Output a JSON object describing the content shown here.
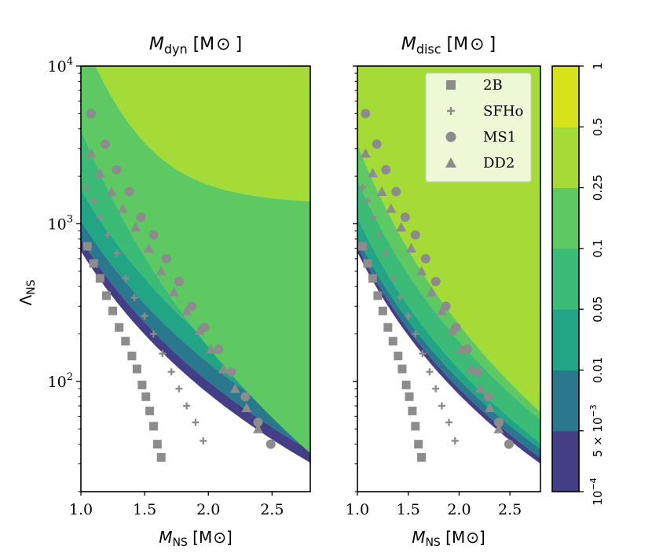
{
  "chart_data": [
    {
      "type": "contour",
      "title_main": "M",
      "title_sub": "dyn",
      "title_unit": " [M",
      "title_unit_sym": "⊙",
      "title_close": "]",
      "xlabel_main": "M",
      "xlabel_sub": "NS",
      "xlabel_unit": " [M",
      "xlabel_unit_sym": "⊙",
      "xlabel_close": "]",
      "ylabel_main": "Λ",
      "ylabel_sub": "NS",
      "xlim": [
        1.0,
        2.8
      ],
      "ylim": [
        20,
        10000
      ],
      "yscale": "log",
      "xticks": [
        "1.0",
        "1.5",
        "2.0",
        "2.5"
      ],
      "yticks": [
        {
          "base": "10",
          "exp": "2"
        },
        {
          "base": "10",
          "exp": "3"
        },
        {
          "base": "10",
          "exp": "4"
        }
      ],
      "curve_family": {
        "lambda_at_M1": [
          670,
          800,
          1050,
          1650,
          4000,
          15000
        ],
        "exponent": [
          3.0,
          3.0,
          3.0,
          3.2,
          4.6,
          5.0
        ],
        "floor": [
          0,
          0,
          0,
          0,
          0,
          1300
        ]
      },
      "series": [
        {
          "name": "2B",
          "marker": "square",
          "x": [
            1.05,
            1.1,
            1.15,
            1.2,
            1.25,
            1.3,
            1.35,
            1.4,
            1.44,
            1.48,
            1.51,
            1.54,
            1.57,
            1.6,
            1.63
          ],
          "y": [
            720,
            560,
            450,
            350,
            280,
            220,
            180,
            145,
            120,
            95,
            80,
            65,
            52,
            40,
            33
          ]
        },
        {
          "name": "SFHo",
          "marker": "plus",
          "x": [
            1.05,
            1.1,
            1.15,
            1.21,
            1.28,
            1.35,
            1.42,
            1.5,
            1.57,
            1.64,
            1.71,
            1.77,
            1.83,
            1.9,
            1.96
          ],
          "y": [
            1700,
            1400,
            1100,
            850,
            650,
            450,
            340,
            260,
            200,
            150,
            115,
            90,
            70,
            55,
            42
          ]
        },
        {
          "name": "MS1",
          "marker": "circle",
          "x": [
            1.08,
            1.19,
            1.28,
            1.38,
            1.47,
            1.57,
            1.67,
            1.77,
            1.87,
            1.97,
            2.08,
            2.18,
            2.29,
            2.39,
            2.49
          ],
          "y": [
            5000,
            3200,
            2200,
            1600,
            1100,
            850,
            600,
            430,
            300,
            220,
            160,
            115,
            80,
            55,
            40
          ]
        },
        {
          "name": "DD2",
          "marker": "triangle",
          "x": [
            1.08,
            1.15,
            1.24,
            1.33,
            1.43,
            1.53,
            1.63,
            1.73,
            1.83,
            1.93,
            2.02,
            2.12,
            2.21,
            2.3,
            2.39
          ],
          "y": [
            2800,
            2100,
            1600,
            1250,
            950,
            700,
            500,
            370,
            280,
            210,
            160,
            120,
            90,
            68,
            50
          ]
        }
      ]
    },
    {
      "type": "contour",
      "title_main": "M",
      "title_sub": "disc",
      "title_unit": " [M",
      "title_unit_sym": "⊙",
      "title_close": "]",
      "xlabel_main": "M",
      "xlabel_sub": "NS",
      "xlabel_unit": " [M",
      "xlabel_unit_sym": "⊙",
      "xlabel_close": "]",
      "xlim": [
        1.0,
        2.8
      ],
      "ylim": [
        20,
        10000
      ],
      "yscale": "log",
      "xticks": [
        "1.0",
        "1.5",
        "2.0",
        "2.5"
      ],
      "curve_family": {
        "lambda_at_M1": [
          660,
          720,
          820,
          1100,
          1900,
          3200
        ],
        "exponent": [
          3.0,
          3.0,
          3.0,
          3.2,
          3.4,
          3.8
        ],
        "floor": [
          0,
          0,
          0,
          0,
          0,
          0
        ]
      },
      "series": [
        {
          "name": "2B",
          "marker": "square",
          "x": [
            1.05,
            1.1,
            1.15,
            1.2,
            1.25,
            1.3,
            1.35,
            1.4,
            1.44,
            1.48,
            1.51,
            1.54,
            1.57,
            1.6,
            1.63
          ],
          "y": [
            720,
            560,
            450,
            350,
            280,
            220,
            180,
            145,
            120,
            95,
            80,
            65,
            52,
            40,
            33
          ]
        },
        {
          "name": "SFHo",
          "marker": "plus",
          "x": [
            1.05,
            1.1,
            1.15,
            1.21,
            1.28,
            1.35,
            1.42,
            1.5,
            1.57,
            1.64,
            1.71,
            1.77,
            1.83,
            1.9,
            1.96
          ],
          "y": [
            1700,
            1400,
            1100,
            850,
            650,
            450,
            340,
            260,
            200,
            150,
            115,
            90,
            70,
            55,
            42
          ]
        },
        {
          "name": "MS1",
          "marker": "circle",
          "x": [
            1.08,
            1.19,
            1.28,
            1.38,
            1.47,
            1.57,
            1.67,
            1.77,
            1.87,
            1.97,
            2.08,
            2.18,
            2.29,
            2.39,
            2.49
          ],
          "y": [
            5000,
            3200,
            2200,
            1600,
            1100,
            850,
            600,
            430,
            300,
            220,
            160,
            115,
            80,
            55,
            40
          ]
        },
        {
          "name": "DD2",
          "marker": "triangle",
          "x": [
            1.08,
            1.15,
            1.24,
            1.33,
            1.43,
            1.53,
            1.63,
            1.73,
            1.83,
            1.93,
            2.02,
            2.12,
            2.21,
            2.3,
            2.39
          ],
          "y": [
            2800,
            2100,
            1600,
            1250,
            950,
            700,
            500,
            370,
            280,
            210,
            160,
            120,
            90,
            68,
            50
          ]
        }
      ]
    }
  ],
  "legend": {
    "placement": "top-right of right panel",
    "entries": [
      {
        "label": "2B",
        "marker": "square"
      },
      {
        "label": "SFHo",
        "marker": "plus"
      },
      {
        "label": "MS1",
        "marker": "circle"
      },
      {
        "label": "DD2",
        "marker": "triangle"
      }
    ]
  },
  "colorbar": {
    "levels": [
      "10",
      "5 × 10",
      "0.01",
      "0.05",
      "0.1",
      "0.25",
      "0.5",
      "1"
    ],
    "bottom_exp": "−4",
    "second_exp": "−3",
    "colors": [
      "#433e85",
      "#2a788e",
      "#21a585",
      "#3bbb75",
      "#5ec962",
      "#a5db36",
      "#d8e219"
    ]
  },
  "marker_color": "#8c8c8c"
}
